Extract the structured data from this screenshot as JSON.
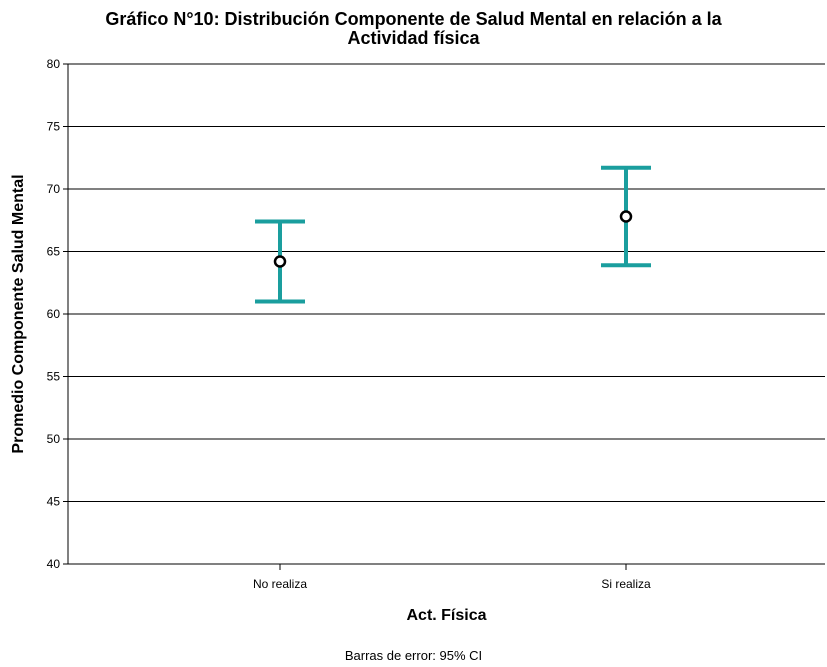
{
  "chart_data": {
    "type": "errorbar",
    "title": "Gráfico N°10:  Distribución Componente de Salud Mental en relación a la Actividad física",
    "title_lines": [
      "Gráfico N°10:  Distribución Componente de Salud Mental en relación a la",
      "Actividad física"
    ],
    "xlabel": "Act. Física",
    "ylabel": "Promedio Componente Salud Mental",
    "categories": [
      "No realiza",
      "Si realiza"
    ],
    "means": [
      64.2,
      67.8
    ],
    "ci_lower": [
      61.0,
      63.9
    ],
    "ci_upper": [
      67.4,
      71.7
    ],
    "ylim": [
      40,
      80
    ],
    "yticks": [
      40,
      45,
      50,
      55,
      60,
      65,
      70,
      75,
      80
    ],
    "grid": "horizontal",
    "errorbar_color": "#1a9e9e",
    "marker": "open-circle",
    "marker_color": "#000000",
    "footnote": "Barras de error: 95% CI"
  }
}
